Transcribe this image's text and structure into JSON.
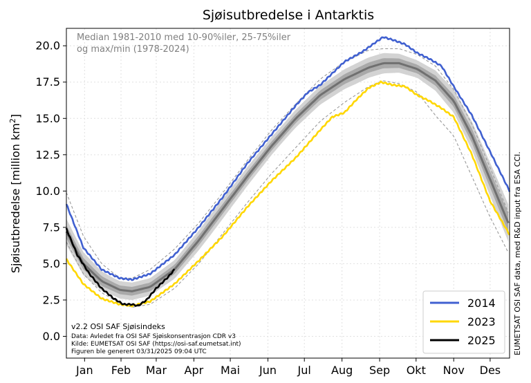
{
  "chart_data": {
    "type": "line",
    "title": "Sjøisutbredelse i Antarktis",
    "ylabel_prefix": "Sjøisutbredelse [million km",
    "ylabel_sup": "2",
    "ylabel_suffix": "]",
    "ylim": [
      -1.5,
      21.2
    ],
    "yticks": [
      0.0,
      2.5,
      5.0,
      7.5,
      10.0,
      12.5,
      15.0,
      17.5,
      20.0
    ],
    "ytick_labels": [
      "0.0",
      "2.5",
      "5.0",
      "7.5",
      "10.0",
      "12.5",
      "15.0",
      "17.5",
      "20.0"
    ],
    "xlim": [
      1,
      366
    ],
    "months": [
      {
        "label": "Jan",
        "day": 16
      },
      {
        "label": "Feb",
        "day": 46
      },
      {
        "label": "Mar",
        "day": 75
      },
      {
        "label": "Apr",
        "day": 106
      },
      {
        "label": "Mai",
        "day": 136
      },
      {
        "label": "Jun",
        "day": 167
      },
      {
        "label": "Jul",
        "day": 197
      },
      {
        "label": "Aug",
        "day": 228
      },
      {
        "label": "Sep",
        "day": 259
      },
      {
        "label": "Okt",
        "day": 289
      },
      {
        "label": "Nov",
        "day": 320
      },
      {
        "label": "Des",
        "day": 350
      }
    ],
    "annotation_top": [
      "Median 1981-2010 med 10-90%iler, 25-75%iler",
      "og max/min (1978-2024)"
    ],
    "annotation_bottom": [
      "v2.2 OSI SAF Sjøisindeks",
      "Data: Avledet fra OSI SAF Sjøiskonsentrasjon CDR v3",
      "Kilde: EUMETSAT OSI SAF (https://osi-saf.eumetsat.int)",
      "Figuren ble generert 03/31/2025 09:04 UTC"
    ],
    "side_text": "EUMETSAT OSI SAF data, med R&D input fra ESA CCI.",
    "legend_position": "bottom-right",
    "median": {
      "x": [
        1,
        15,
        30,
        45,
        55,
        70,
        90,
        110,
        130,
        150,
        170,
        190,
        210,
        230,
        250,
        262,
        275,
        290,
        305,
        320,
        335,
        350,
        366
      ],
      "y": [
        7.2,
        5.0,
        3.8,
        3.2,
        3.1,
        3.4,
        4.6,
        6.6,
        8.8,
        11.0,
        13.1,
        15.0,
        16.6,
        17.7,
        18.5,
        18.8,
        18.8,
        18.4,
        17.6,
        16.2,
        13.8,
        10.8,
        7.6
      ]
    },
    "band_10_90_halfwidth": {
      "x": [
        1,
        40,
        70,
        120,
        180,
        240,
        262,
        290,
        320,
        345,
        366
      ],
      "y": [
        0.9,
        0.6,
        0.6,
        0.7,
        0.6,
        0.7,
        0.7,
        0.6,
        0.8,
        1.1,
        1.3
      ]
    },
    "band_25_75_halfwidth": {
      "x": [
        1,
        40,
        70,
        120,
        180,
        240,
        262,
        290,
        320,
        345,
        366
      ],
      "y": [
        0.45,
        0.3,
        0.3,
        0.35,
        0.3,
        0.35,
        0.35,
        0.3,
        0.4,
        0.55,
        0.65
      ]
    },
    "extremes": [
      {
        "name": "max",
        "x": [
          1,
          15,
          30,
          45,
          55,
          70,
          90,
          110,
          130,
          150,
          170,
          190,
          210,
          230,
          250,
          262,
          275,
          290,
          305,
          320,
          335,
          350,
          366
        ],
        "y": [
          9.9,
          6.9,
          5.0,
          4.0,
          4.0,
          4.6,
          6.0,
          7.8,
          9.9,
          12.1,
          14.2,
          16.0,
          17.7,
          18.9,
          19.7,
          19.8,
          19.8,
          19.4,
          18.6,
          17.0,
          14.6,
          11.6,
          8.3
        ]
      },
      {
        "name": "min",
        "x": [
          1,
          15,
          30,
          45,
          55,
          70,
          90,
          110,
          130,
          150,
          170,
          190,
          210,
          230,
          250,
          262,
          275,
          290,
          305,
          320,
          335,
          350,
          366
        ],
        "y": [
          6.5,
          4.3,
          3.0,
          2.3,
          2.0,
          2.2,
          3.3,
          5.0,
          7.1,
          9.2,
          11.2,
          13.0,
          14.8,
          16.1,
          17.2,
          17.6,
          17.4,
          16.8,
          15.2,
          13.8,
          11.0,
          8.2,
          5.6
        ]
      }
    ],
    "series": [
      {
        "name": "2014",
        "color": "#4060d0",
        "x": [
          1,
          15,
          30,
          45,
          55,
          70,
          90,
          110,
          130,
          150,
          170,
          190,
          200,
          210,
          230,
          245,
          255,
          262,
          270,
          280,
          290,
          300,
          310,
          320,
          335,
          350,
          366
        ],
        "y": [
          9.1,
          6.1,
          4.6,
          4.0,
          3.9,
          4.3,
          5.6,
          7.5,
          9.6,
          11.9,
          13.9,
          15.9,
          16.8,
          17.3,
          18.9,
          19.6,
          20.2,
          20.6,
          20.4,
          20.1,
          19.5,
          19.1,
          18.6,
          17.2,
          15.2,
          12.7,
          10.0
        ]
      },
      {
        "name": "2023",
        "color": "#ffd700",
        "x": [
          1,
          15,
          30,
          45,
          55,
          60,
          70,
          90,
          110,
          130,
          150,
          170,
          190,
          210,
          220,
          230,
          240,
          250,
          260,
          270,
          280,
          290,
          300,
          310,
          320,
          335,
          350,
          366
        ],
        "y": [
          5.3,
          3.6,
          2.6,
          2.2,
          2.1,
          2.2,
          2.4,
          3.6,
          5.2,
          6.9,
          8.9,
          10.7,
          12.3,
          14.2,
          15.1,
          15.4,
          16.3,
          17.1,
          17.5,
          17.3,
          17.2,
          16.6,
          16.2,
          15.7,
          15.1,
          12.5,
          9.3,
          7.0
        ]
      },
      {
        "name": "2025",
        "color": "#000000",
        "x": [
          1,
          10,
          20,
          30,
          40,
          48,
          55,
          60,
          67,
          75,
          85,
          90
        ],
        "y": [
          7.4,
          5.6,
          4.3,
          3.3,
          2.6,
          2.2,
          2.2,
          2.1,
          2.5,
          3.3,
          4.1,
          4.6
        ]
      }
    ]
  }
}
